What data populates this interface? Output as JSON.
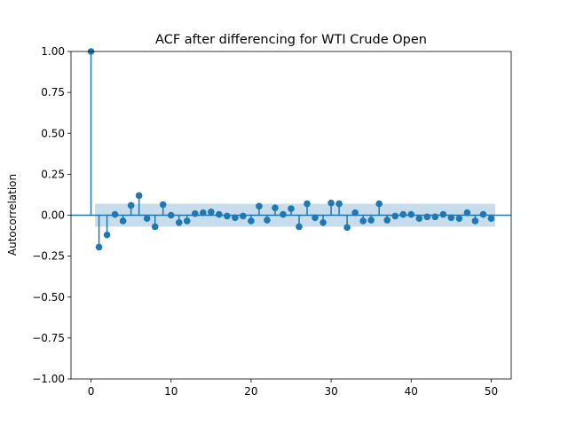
{
  "chart_data": {
    "type": "stem",
    "title": "ACF after differencing for WTI Crude Open",
    "xlabel": "",
    "ylabel": "Autocorrelation",
    "xlim": [
      -2.5,
      52.5
    ],
    "ylim": [
      -1.0,
      1.0
    ],
    "xticks": [
      0,
      10,
      20,
      30,
      40,
      50
    ],
    "yticks": [
      1.0,
      0.75,
      0.5,
      0.25,
      0.0,
      -0.25,
      -0.5,
      -0.75,
      -1.0
    ],
    "ytick_labels": [
      "1.00",
      "0.75",
      "0.50",
      "0.25",
      "0.00",
      "−0.25",
      "−0.50",
      "−0.75",
      "−1.00"
    ],
    "xtick_labels": [
      "0",
      "10",
      "20",
      "30",
      "40",
      "50"
    ],
    "lags": [
      0,
      1,
      2,
      3,
      4,
      5,
      6,
      7,
      8,
      9,
      10,
      11,
      12,
      13,
      14,
      15,
      16,
      17,
      18,
      19,
      20,
      21,
      22,
      23,
      24,
      25,
      26,
      27,
      28,
      29,
      30,
      31,
      32,
      33,
      34,
      35,
      36,
      37,
      38,
      39,
      40,
      41,
      42,
      43,
      44,
      45,
      46,
      47,
      48,
      49,
      50
    ],
    "acf": [
      1.0,
      -0.195,
      -0.12,
      0.005,
      -0.035,
      0.06,
      0.12,
      -0.02,
      -0.07,
      0.065,
      0.0,
      -0.045,
      -0.035,
      0.01,
      0.015,
      0.02,
      0.005,
      -0.005,
      -0.015,
      -0.005,
      -0.035,
      0.055,
      -0.03,
      0.045,
      0.005,
      0.04,
      -0.07,
      0.07,
      -0.015,
      -0.045,
      0.075,
      0.07,
      -0.075,
      0.015,
      -0.035,
      -0.03,
      0.07,
      -0.03,
      -0.005,
      0.005,
      0.005,
      -0.02,
      -0.01,
      -0.01,
      0.005,
      -0.015,
      -0.02,
      0.015,
      -0.035,
      0.005,
      -0.02
    ],
    "confidence_band": 0.07,
    "grid": false,
    "colors": {
      "stem": "#1f77b4",
      "band": "#1f77b4",
      "axis": "#000000"
    }
  }
}
